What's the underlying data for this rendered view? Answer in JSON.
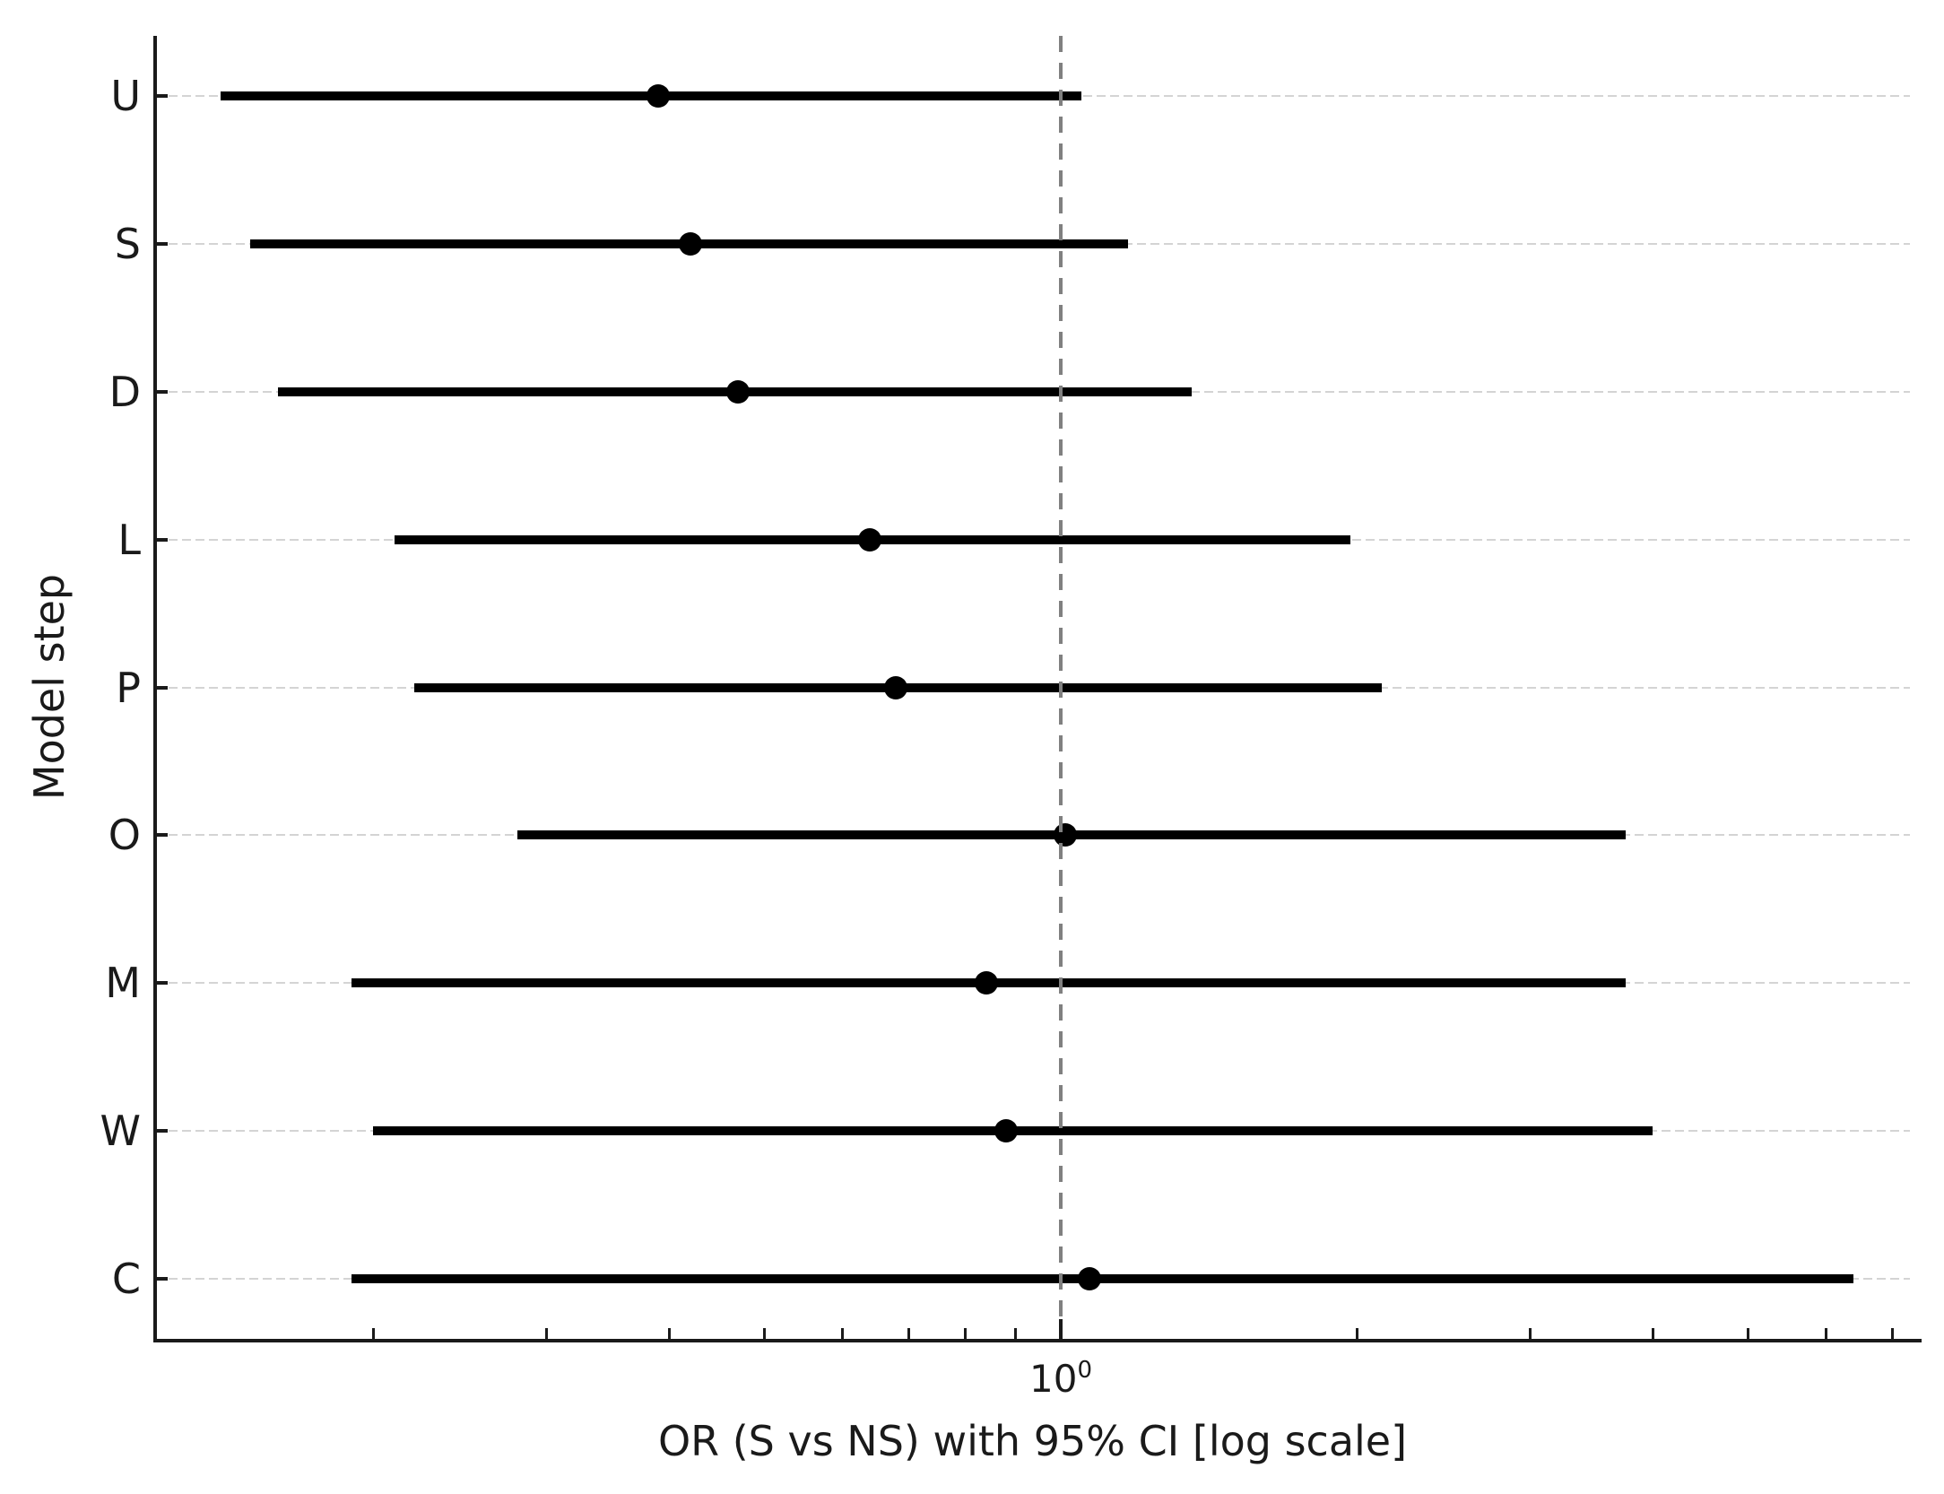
{
  "chart_data": {
    "type": "scatter",
    "subtype": "horizontal-forest-plot-with-95ci-errorbars",
    "title": "",
    "xlabel": "OR (S vs NS) with 95% CI [log scale]",
    "ylabel": "Model step",
    "x_scale": "log",
    "xlim": [
      0.12,
      7.3
    ],
    "categories": [
      "U",
      "S",
      "D",
      "L",
      "P",
      "O",
      "M",
      "W",
      "C"
    ],
    "series": [
      {
        "name": "OR",
        "values": [
          0.39,
          0.42,
          0.47,
          0.64,
          0.68,
          1.01,
          0.84,
          0.88,
          1.07
        ]
      },
      {
        "name": "CI_low",
        "values": [
          0.14,
          0.15,
          0.16,
          0.21,
          0.22,
          0.28,
          0.19,
          0.2,
          0.19
        ]
      },
      {
        "name": "CI_high",
        "values": [
          1.05,
          1.17,
          1.36,
          1.97,
          2.12,
          3.75,
          3.75,
          4.0,
          6.4
        ]
      }
    ],
    "reference_line": {
      "x": 1.0,
      "style": "dashed",
      "color": "#808080"
    },
    "x_major_ticks": [
      {
        "value": 1.0,
        "label_base": "10",
        "label_exponent": "0"
      }
    ],
    "x_minor_tick_values": [
      0.2,
      0.3,
      0.4,
      0.5,
      0.6,
      0.7,
      0.8,
      0.9,
      2,
      3,
      4,
      5,
      6,
      7
    ],
    "grid": {
      "axis": "y",
      "style": "dashed",
      "on": true
    },
    "legend_position": "none",
    "colors": {
      "bar": "#000000",
      "marker": "#000000",
      "grid": "#d4d4d4",
      "spine": "#1a1a1a",
      "text": "#1a1a1a",
      "reference_line": "#808080",
      "background": "#ffffff"
    }
  }
}
